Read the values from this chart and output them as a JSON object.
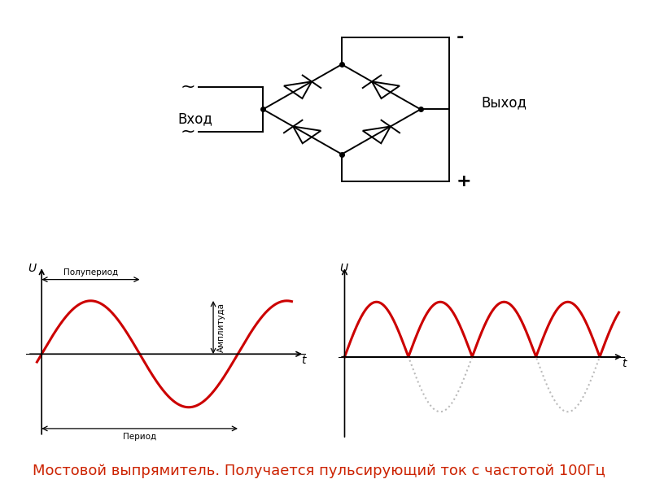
{
  "title_text": "Мостовой выпрямитель. Получается пульсирующий ток с частотой 100Гц",
  "title_color": "#CC2200",
  "title_fontsize": 13,
  "sine_color": "#CC0000",
  "sine_linewidth": 2.2,
  "dot_color": "#BBBBBB",
  "dot_linewidth": 1.5,
  "axis_color": "#000000",
  "annotation_color": "#000000",
  "circuit_color": "#000000",
  "background_color": "#FFFFFF",
  "label_polupperiod": "Полупериод",
  "label_period": "Период",
  "label_amplitude": "Амплитуда",
  "label_vkhod": "Вход",
  "label_vykhod": "Выход",
  "label_minus": "-",
  "label_plus": "+",
  "label_tilde": "~"
}
